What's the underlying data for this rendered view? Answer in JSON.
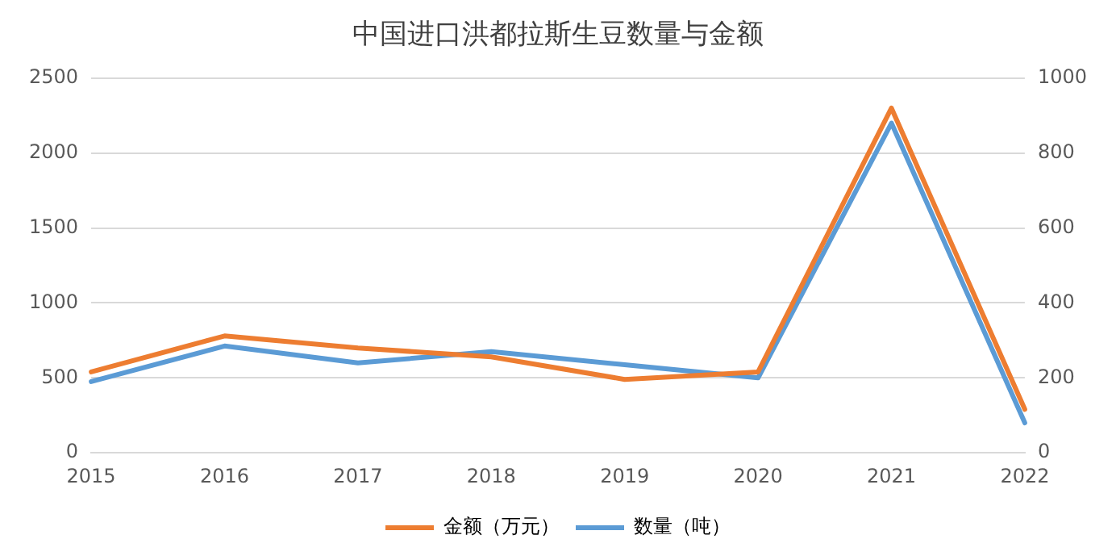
{
  "chart_data": {
    "type": "line",
    "title": "中国进口洪都拉斯生豆数量与金额",
    "categories": [
      "2015",
      "2016",
      "2017",
      "2018",
      "2019",
      "2020",
      "2021",
      "2022"
    ],
    "series": [
      {
        "name": "金额（万元）",
        "color": "#ed7d31",
        "values": [
          540,
          780,
          700,
          640,
          490,
          540,
          2300,
          290
        ]
      },
      {
        "name": "数量（吨）",
        "color": "#5b9bd5",
        "axis": "y2",
        "values": [
          190,
          285,
          240,
          270,
          235,
          200,
          880,
          80
        ]
      }
    ],
    "ylim": [
      0,
      2500
    ],
    "yticks": [
      0,
      500,
      1000,
      1500,
      2000,
      2500
    ],
    "y2lim": [
      0,
      1000
    ],
    "y2ticks": [
      0,
      200,
      400,
      600,
      800,
      1000
    ],
    "grid": "y",
    "legend": "bottom",
    "marker": "none",
    "line_style": "solid"
  }
}
